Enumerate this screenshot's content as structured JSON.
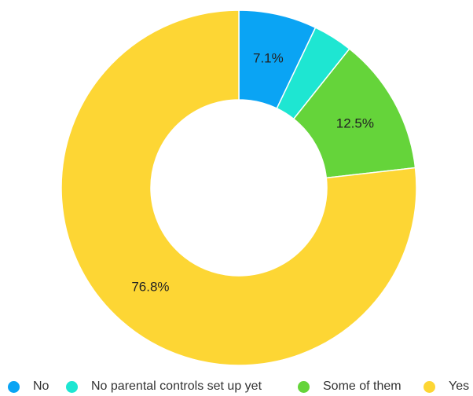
{
  "chart_data": {
    "type": "pie",
    "donut": true,
    "categories": [
      "No",
      "No parental controls set up yet",
      "Some of them",
      "Yes"
    ],
    "values": [
      7.1,
      3.6,
      12.5,
      76.8
    ],
    "value_labels": [
      "7.1%",
      "",
      "12.5%",
      "76.8%"
    ],
    "colors": [
      "#0aa4f4",
      "#1ee6d2",
      "#65d43a",
      "#fdd634"
    ],
    "legend_position": "bottom",
    "title": ""
  },
  "legend": {
    "items": [
      {
        "label": "No",
        "color": "#0aa4f4"
      },
      {
        "label": "No parental controls set up yet",
        "color": "#1ee6d2"
      },
      {
        "label": "Some of them",
        "color": "#65d43a"
      },
      {
        "label": "Yes",
        "color": "#fdd634"
      }
    ]
  }
}
